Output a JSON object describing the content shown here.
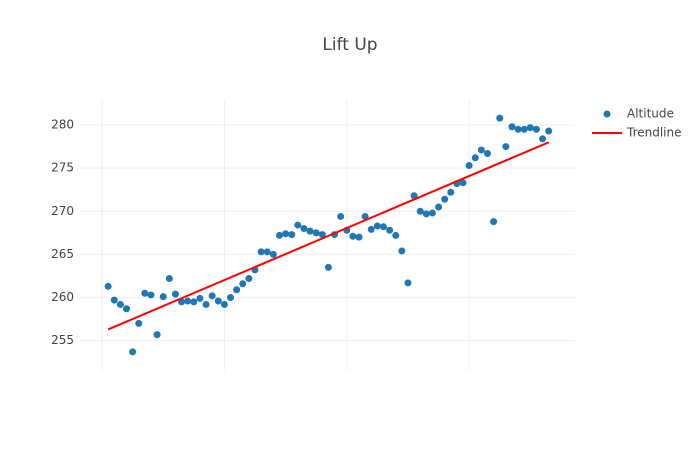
{
  "chart_data": {
    "type": "scatter",
    "title": "Lift Up",
    "x": [
      1,
      2,
      3,
      4,
      5,
      6,
      7,
      8,
      9,
      10,
      11,
      12,
      13,
      14,
      15,
      16,
      17,
      18,
      19,
      20,
      21,
      22,
      23,
      24,
      25,
      26,
      27,
      28,
      29,
      30,
      31,
      32,
      33,
      34,
      35,
      36,
      37,
      38,
      39,
      40,
      41,
      42,
      43,
      44,
      45,
      46,
      47,
      48,
      49,
      50,
      51,
      52,
      53,
      54,
      55,
      56,
      57,
      58,
      59,
      60,
      61,
      62,
      63,
      64,
      65,
      66,
      67,
      68,
      69,
      70,
      71,
      72,
      73
    ],
    "series": [
      {
        "name": "Altitude",
        "color": "#1f77b4",
        "mode": "markers",
        "values": [
          261.3,
          259.7,
          259.2,
          258.7,
          253.7,
          257.0,
          260.5,
          260.3,
          255.7,
          260.1,
          262.2,
          260.4,
          259.5,
          259.6,
          259.5,
          259.9,
          259.2,
          260.2,
          259.6,
          259.2,
          260.0,
          260.9,
          261.6,
          262.2,
          263.2,
          265.3,
          265.3,
          265.0,
          267.2,
          267.4,
          267.3,
          268.4,
          268.0,
          267.7,
          267.5,
          267.3,
          263.5,
          267.3,
          269.4,
          267.8,
          267.1,
          267.0,
          269.4,
          267.9,
          268.3,
          268.2,
          267.8,
          267.2,
          265.4,
          261.7,
          271.8,
          270.0,
          269.7,
          269.8,
          270.5,
          271.4,
          272.2,
          273.2,
          273.3,
          275.3,
          276.2,
          277.1,
          276.7,
          268.8,
          280.8,
          277.5,
          279.8,
          279.5,
          279.5,
          279.7,
          279.5,
          278.4,
          279.3
        ]
      },
      {
        "name": "Trendline",
        "color": "#ff0000",
        "mode": "lines",
        "x": [
          1,
          73
        ],
        "values": [
          256.3,
          278.0
        ]
      }
    ],
    "xlim": [
      -3.6,
      77.3
    ],
    "xticks": [
      0,
      20,
      40,
      60
    ],
    "ylim": [
      251.6,
      282.9
    ],
    "yticks": [
      255,
      260,
      265,
      270,
      275,
      280
    ],
    "grid": true,
    "legend": "top-right"
  }
}
